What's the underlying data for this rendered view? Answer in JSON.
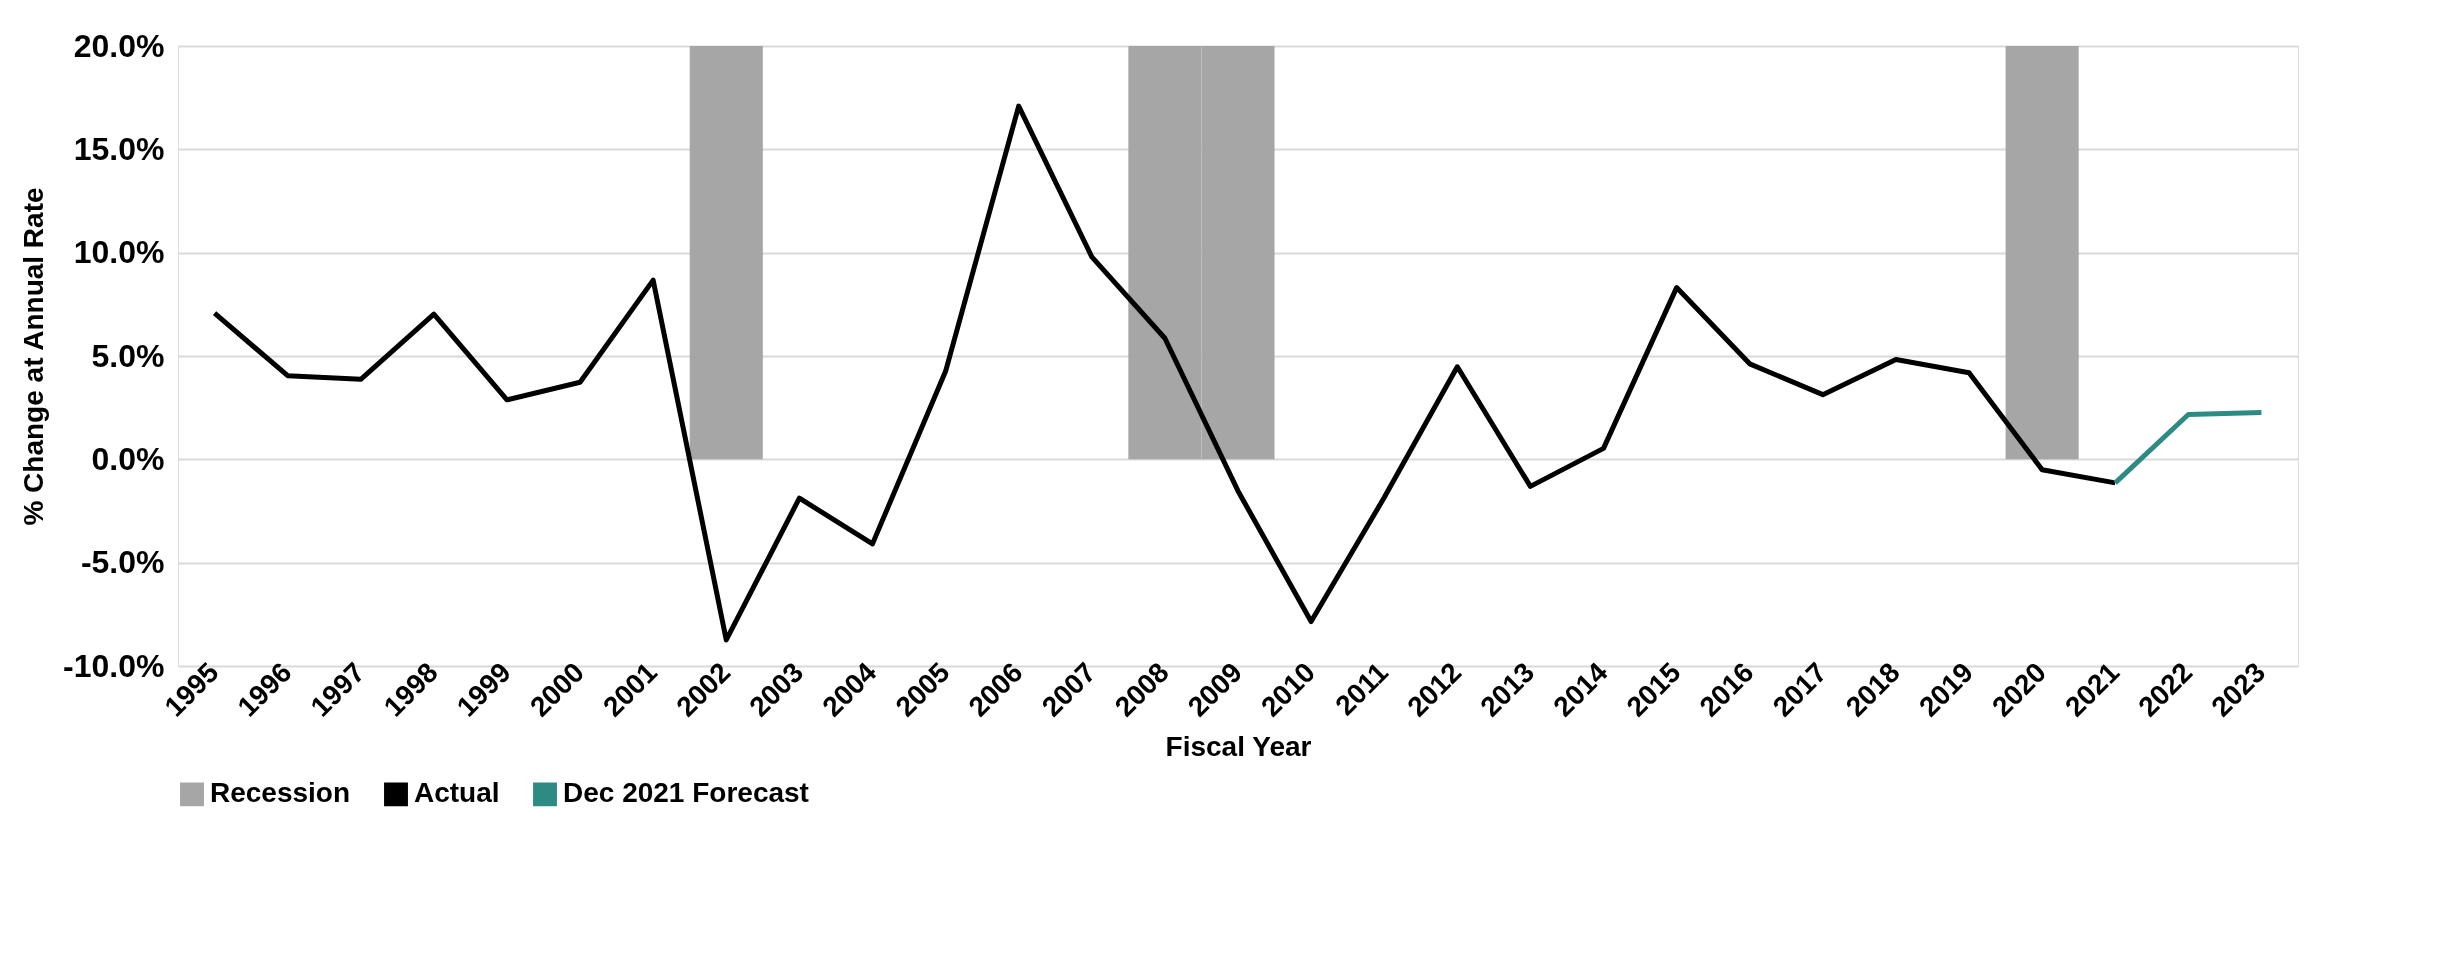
{
  "chart_data": {
    "type": "line",
    "xlabel": "Fiscal Year",
    "ylabel": "% Change at Annual Rate",
    "categories": [
      "1995",
      "1996",
      "1997",
      "1998",
      "1999",
      "2000",
      "2001",
      "2002",
      "2003",
      "2004",
      "2005",
      "2006",
      "2007",
      "2008",
      "2009",
      "2010",
      "2011",
      "2012",
      "2013",
      "2014",
      "2015",
      "2016",
      "2017",
      "2018",
      "2019",
      "2020",
      "2021",
      "2022",
      "2023"
    ],
    "series": [
      {
        "name": "Recession",
        "type": "bar",
        "color": "#a6a6a6",
        "values": [
          null,
          null,
          null,
          null,
          null,
          null,
          null,
          20,
          null,
          null,
          null,
          null,
          null,
          20,
          20,
          null,
          null,
          null,
          null,
          null,
          null,
          null,
          null,
          null,
          null,
          20,
          null,
          null,
          null
        ]
      },
      {
        "name": "Actual",
        "color": "#000000",
        "values": [
          7.07,
          4.05,
          3.87,
          7.03,
          2.88,
          3.73,
          8.67,
          -8.74,
          -1.88,
          -4.09,
          4.26,
          17.09,
          9.8,
          5.86,
          -1.53,
          -7.85,
          -1.85,
          4.48,
          -1.31,
          0.53,
          8.31,
          4.62,
          3.13,
          4.83,
          4.19,
          -0.5,
          -1.14,
          null,
          null
        ]
      },
      {
        "name": "Dec 2021 Forecast",
        "color": "#2e8b84",
        "values": [
          null,
          null,
          null,
          null,
          null,
          null,
          null,
          null,
          null,
          null,
          null,
          null,
          null,
          null,
          null,
          null,
          null,
          null,
          null,
          null,
          null,
          null,
          null,
          null,
          null,
          null,
          -1.14,
          2.17,
          2.27
        ]
      }
    ],
    "ylim": [
      -10,
      20
    ],
    "yticks": [
      {
        "value": -10,
        "label": "-10.0%"
      },
      {
        "value": -5,
        "label": "-5.0%"
      },
      {
        "value": 0,
        "label": "0.0%"
      },
      {
        "value": 5,
        "label": "5.0%"
      },
      {
        "value": 10,
        "label": "10.0%"
      },
      {
        "value": 15,
        "label": "15.0%"
      },
      {
        "value": 20,
        "label": "20.0%"
      }
    ],
    "grid": "y",
    "legend": "bottom",
    "marker": "none",
    "line_style": "solid"
  }
}
